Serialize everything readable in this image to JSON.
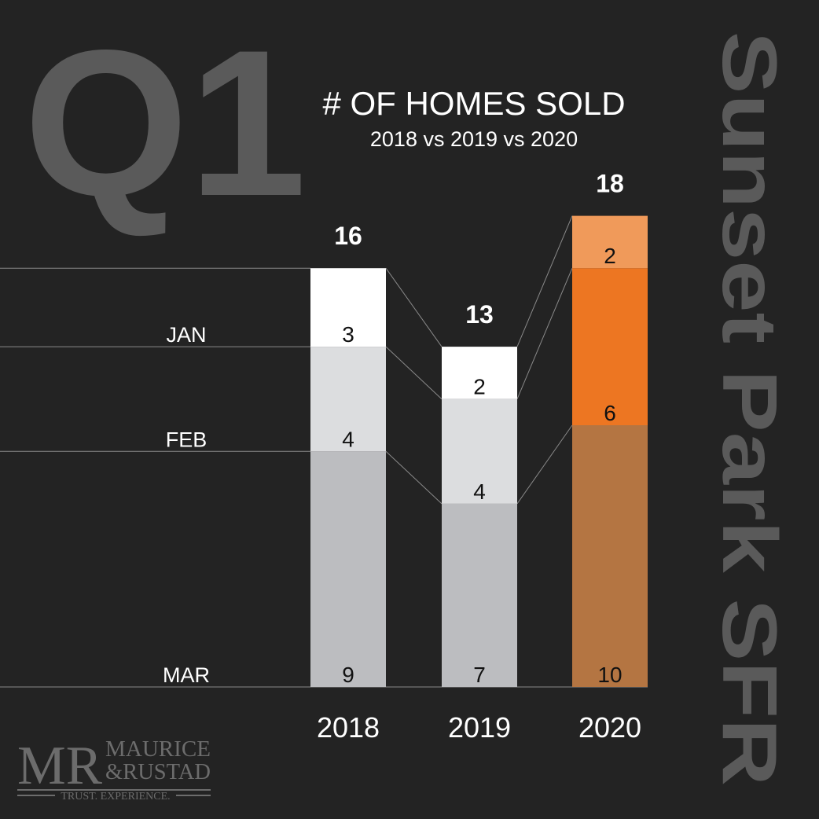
{
  "quarter_label": "Q1",
  "side_title": "Sunset Park SFR",
  "chart_data": {
    "type": "bar",
    "stacked": true,
    "title": "# OF HOMES SOLD",
    "subtitle": "2018 vs 2019 vs 2020",
    "categories": [
      "2018",
      "2019",
      "2020"
    ],
    "series": [
      {
        "name": "MAR",
        "values": [
          9,
          7,
          10
        ]
      },
      {
        "name": "FEB",
        "values": [
          4,
          4,
          6
        ]
      },
      {
        "name": "JAN",
        "values": [
          3,
          2,
          2
        ]
      }
    ],
    "totals": [
      16,
      13,
      18
    ],
    "ylim": [
      0,
      18
    ],
    "grid": false
  },
  "colors": {
    "background": "#232323",
    "big_text": "#5a5a5a",
    "grey_mar": "#bcbdc0",
    "grey_feb": "#dcdddf",
    "grey_jan": "#ffffff",
    "orange_mar": "#b47542",
    "orange_feb": "#ed7622",
    "orange_jan": "#f09a5a",
    "connector": "#8a8a8a"
  },
  "logo": {
    "monogram": "MR",
    "line1": "MAURICE",
    "line2": "&RUSTAD",
    "tagline": "TRUST. EXPERIENCE."
  }
}
